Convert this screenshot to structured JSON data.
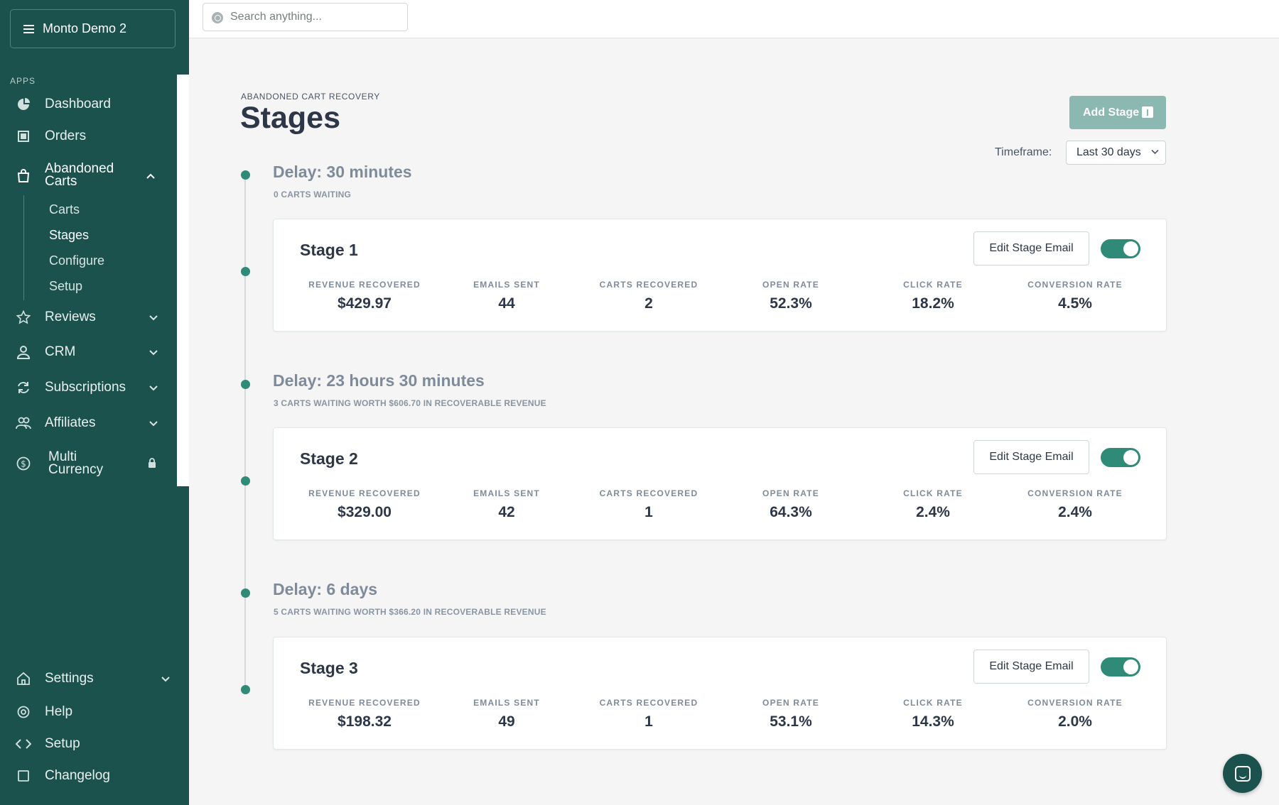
{
  "sidebar": {
    "store_name": "Monto Demo 2",
    "apps_label": "APPS",
    "items": {
      "dashboard": "Dashboard",
      "orders": "Orders",
      "abandoned_carts": "Abandoned Carts",
      "reviews": "Reviews",
      "crm": "CRM",
      "subscriptions": "Subscriptions",
      "affiliates": "Affiliates",
      "multi_currency": "Multi Currency",
      "settings": "Settings",
      "help": "Help",
      "setup": "Setup",
      "changelog": "Changelog"
    },
    "sub_items": {
      "carts": "Carts",
      "stages": "Stages",
      "configure": "Configure",
      "setup": "Setup"
    },
    "accent": "#1b524e"
  },
  "search": {
    "placeholder": "Search anything..."
  },
  "header": {
    "breadcrumb": "ABANDONED CART RECOVERY",
    "title": "Stages",
    "add_stage_label": "Add Stage",
    "timeframe_label": "Timeframe:",
    "timeframe_value": "Last 30 days"
  },
  "stat_labels": {
    "revenue": "REVENUE RECOVERED",
    "emails": "EMAILS SENT",
    "carts": "CARTS RECOVERED",
    "open": "OPEN RATE",
    "click": "CLICK RATE",
    "conversion": "CONVERSION RATE"
  },
  "edit_label": "Edit Stage Email",
  "stages": [
    {
      "delay": "Delay: 30 minutes",
      "waiting": "0 CARTS WAITING",
      "name": "Stage 1",
      "enabled": true,
      "revenue": "$429.97",
      "emails": "44",
      "carts": "2",
      "open": "52.3%",
      "click": "18.2%",
      "conversion": "4.5%"
    },
    {
      "delay": "Delay: 23 hours 30 minutes",
      "waiting": "3 CARTS WAITING WORTH $606.70 IN RECOVERABLE REVENUE",
      "name": "Stage 2",
      "enabled": true,
      "revenue": "$329.00",
      "emails": "42",
      "carts": "1",
      "open": "64.3%",
      "click": "2.4%",
      "conversion": "2.4%"
    },
    {
      "delay": "Delay: 6 days",
      "waiting": "5 CARTS WAITING WORTH $366.20 IN RECOVERABLE REVENUE",
      "name": "Stage 3",
      "enabled": true,
      "revenue": "$198.32",
      "emails": "49",
      "carts": "1",
      "open": "53.1%",
      "click": "14.3%",
      "conversion": "2.0%"
    }
  ]
}
